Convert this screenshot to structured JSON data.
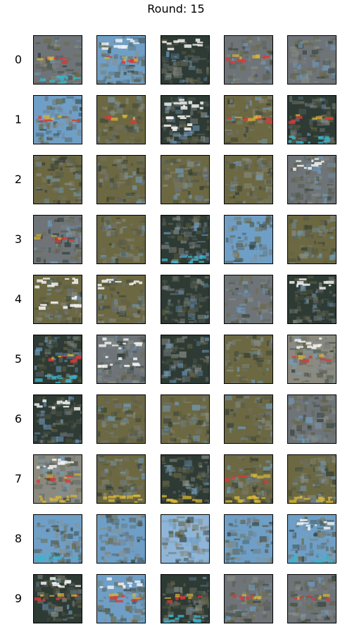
{
  "figure": {
    "title": "Round: 15",
    "row_labels": [
      "0",
      "1",
      "2",
      "3",
      "4",
      "5",
      "6",
      "7",
      "8",
      "9"
    ],
    "columns": 5
  },
  "palette": {
    "background": "#ffffff",
    "border": "#000000",
    "sky_blue": "#6f9fc6",
    "gray": "#6e7478",
    "olive": "#6c6842",
    "dark": "#2e3a34",
    "white": "#f2f2f2",
    "red": "#d83a3a",
    "yellow": "#d9b83a",
    "cyan": "#3cb4cc"
  },
  "cells": [
    [
      "gray-dark-redband-cyanbottom",
      "blue-white-redband",
      "dark-white-top",
      "gray-redband",
      "gray-blue"
    ],
    [
      "blue-redband",
      "olive-redband",
      "dark-white-blobs",
      "olive-redband",
      "dark-red-cyanbottom"
    ],
    [
      "olive-gray",
      "olive-gray",
      "olive",
      "olive-gray",
      "gray-white"
    ],
    [
      "gray-redband",
      "olive-dark",
      "dark-cyanbottom",
      "blue-gray",
      "olive-dark"
    ],
    [
      "olive-white-blobs",
      "olive-white",
      "dark-olive",
      "gray-blue",
      "dark-white-top"
    ],
    [
      "dark-redband-cyan",
      "gray-white-blobs",
      "dark-gray",
      "olive-gray",
      "white-red-top"
    ],
    [
      "dark-white-top",
      "olive-dark",
      "olive",
      "olive-gray",
      "gray-olive"
    ],
    [
      "white-red-top-yellow",
      "olive-yellow",
      "dark-yellow",
      "olive-red-yellow",
      "olive-yellow"
    ],
    [
      "blue-dark-cyan",
      "blue-gray",
      "light-blue-dark",
      "blue-gray",
      "blue-white-cyan"
    ],
    [
      "dark-white-redband",
      "blue-white-redband",
      "dark-redband-cyan",
      "gray-redband",
      "gray-redband"
    ]
  ]
}
